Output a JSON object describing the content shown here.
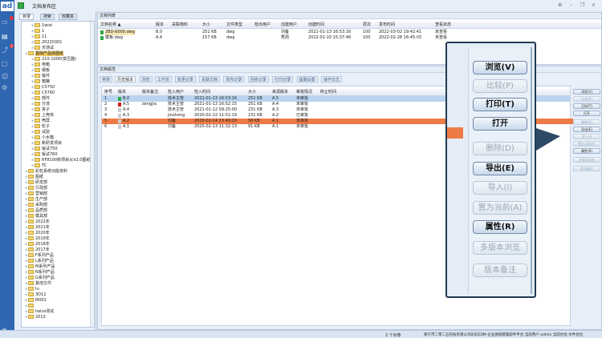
{
  "app": {
    "logo": "ad",
    "title": "文档发布区",
    "window_controls": [
      "⚙",
      "–",
      "❐",
      "×"
    ],
    "sidebar_badges": [
      "",
      "2"
    ]
  },
  "tree": {
    "tabs": [
      "目录",
      "搜索",
      "收藏夹"
    ],
    "items": [
      {
        "label": "1wist",
        "lvl": 2
      },
      {
        "label": "1",
        "lvl": 2
      },
      {
        "label": "11",
        "lvl": 2
      },
      {
        "label": "20220301",
        "lvl": 2
      },
      {
        "label": "天测试",
        "lvl": 2
      },
      {
        "label": "基础产品库图纸",
        "lvl": 1,
        "selected": true
      },
      {
        "label": "210-1000(变压器)",
        "lvl": 2
      },
      {
        "label": "电箱",
        "lvl": 2
      },
      {
        "label": "钢板",
        "lvl": 2
      },
      {
        "label": "钣件",
        "lvl": 2
      },
      {
        "label": "箱罐",
        "lvl": 2
      },
      {
        "label": "C5750",
        "lvl": 2
      },
      {
        "label": "C5760",
        "lvl": 2
      },
      {
        "label": "部件",
        "lvl": 2
      },
      {
        "label": "分流",
        "lvl": 2
      },
      {
        "label": "夹子",
        "lvl": 2
      },
      {
        "label": "上壳体",
        "lvl": 2
      },
      {
        "label": "壳屏",
        "lvl": 2
      },
      {
        "label": "轮子",
        "lvl": 2
      },
      {
        "label": "试验",
        "lvl": 2
      },
      {
        "label": "小水箱",
        "lvl": 2
      },
      {
        "label": "新研发项目",
        "lvl": 2
      },
      {
        "label": "钣试750",
        "lvl": 2
      },
      {
        "label": "钣试760",
        "lvl": 2
      },
      {
        "label": "RF8100新项目从V2.0图纸",
        "lvl": 2
      },
      {
        "label": "TC",
        "lvl": 2
      },
      {
        "label": "彩虹系统功能资料",
        "lvl": 1
      },
      {
        "label": "图纸",
        "lvl": 1
      },
      {
        "label": "研发部",
        "lvl": 1
      },
      {
        "label": "行政部",
        "lvl": 1
      },
      {
        "label": "营销部",
        "lvl": 1
      },
      {
        "label": "生产部",
        "lvl": 1
      },
      {
        "label": "采购部",
        "lvl": 1
      },
      {
        "label": "品质部",
        "lvl": 1
      },
      {
        "label": "模具部",
        "lvl": 1
      },
      {
        "label": "2022年",
        "lvl": 1
      },
      {
        "label": "2021年",
        "lvl": 1
      },
      {
        "label": "2020年",
        "lvl": 1
      },
      {
        "label": "2019年",
        "lvl": 1
      },
      {
        "label": "2018年",
        "lvl": 1
      },
      {
        "label": "2017年",
        "lvl": 1
      },
      {
        "label": "F系列产品",
        "lvl": 1
      },
      {
        "label": "L系列产品",
        "lvl": 1
      },
      {
        "label": "M系列产品",
        "lvl": 1
      },
      {
        "label": "N系列产品",
        "lvl": 1
      },
      {
        "label": "G系列产品",
        "lvl": 1
      },
      {
        "label": "其他文件",
        "lvl": 1
      },
      {
        "label": "tv",
        "lvl": 1
      },
      {
        "label": "3D12",
        "lvl": 1
      },
      {
        "label": "M001",
        "lvl": 1
      },
      {
        "label": "",
        "lvl": 1
      },
      {
        "label": "twice测试",
        "lvl": 1
      },
      {
        "label": "2013",
        "lvl": 1
      }
    ]
  },
  "doclist": {
    "title": "文档列表",
    "columns": [
      "文档名称 ▲",
      "版本",
      "关联物料",
      "大小",
      "文件类型",
      "检出用户",
      "创建用户",
      "创建时间",
      "层次",
      "发布时间",
      "查看状态"
    ],
    "rows": [
      [
        "2BD-6000.dwg",
        "B.0",
        "",
        "251 KB",
        "dwg",
        "",
        "刘备",
        "2021-01-13 16:53:16",
        "100",
        "2022-03-02 19:42:41",
        "未查看"
      ],
      [
        "模板.dwg",
        "A.4",
        "",
        "157 KB",
        "dwg",
        "",
        "秀周",
        "2022-01-10 15:37:48",
        "100",
        "2022-02-28 16:45:03",
        "未查看"
      ]
    ]
  },
  "props": {
    "title": "文档属性",
    "tabs": [
      "常规",
      "历史版本",
      "浏览",
      "工作流",
      "变更记录",
      "关联文档",
      "发布记录",
      "回收记录",
      "打印记录",
      "提醒设置",
      "操作日志"
    ],
    "active_tab": 1,
    "columns": [
      "序号",
      "版本",
      "版本备注",
      "检入用户",
      "检入时间",
      "大小",
      "来源版本",
      "审批情况",
      "终止时间"
    ],
    "rows": [
      [
        "1",
        "B.0",
        "",
        "技术主管",
        "2021-01-13 16:53:16",
        "251 KB",
        "A.5",
        "未审批",
        ""
      ],
      [
        "2",
        "A.5",
        "zengjia",
        "技术主管",
        "2021-01-13 16:52:15",
        "251 KB",
        "A.4",
        "未审批",
        ""
      ],
      [
        "3",
        "A.4",
        "",
        "技术主管",
        "2021-01-12 09:25:00",
        "231 KB",
        "A.3",
        "未审批",
        ""
      ],
      [
        "4",
        "A.3",
        "",
        "jinsheng",
        "2020-02-22 11:51:19",
        "231 KB",
        "A.2",
        "已审批",
        ""
      ],
      [
        "5",
        "A.2",
        "",
        "刘备",
        "2020-02-14 13:40:20",
        "58 KB",
        "A.1",
        "未审批",
        ""
      ],
      [
        "6",
        "A.1",
        "",
        "刘备",
        "2020-02-13 11:32:13",
        "91 KB",
        "A.1",
        "未审批",
        ""
      ]
    ],
    "selected_row": 0,
    "highlight_row": 4,
    "colors": {
      "selected": "#b9d4f0",
      "highlight": "#ee7a45"
    },
    "buttons": [
      {
        "label": "浏览(V)",
        "enabled": true
      },
      {
        "label": "比较(P)",
        "enabled": false
      },
      {
        "label": "打印(T)",
        "enabled": true
      },
      {
        "label": "打开",
        "enabled": true
      },
      {
        "label": "删除(D)",
        "enabled": false
      },
      {
        "label": "导出(E)",
        "enabled": true
      },
      {
        "label": "导入(I)",
        "enabled": false
      },
      {
        "label": "置为当前(A)",
        "enabled": false
      },
      {
        "label": "属性(R)",
        "enabled": true
      },
      {
        "label": "多版本浏览",
        "enabled": false
      },
      {
        "label": "版本备注",
        "enabled": false
      }
    ]
  },
  "status": {
    "count": "2 个对象",
    "info": "南宁市二零二五科技有限公司彩虹EDM-企业图纸管理软件平台  当前用户:admin  当前台位:文件台位"
  }
}
